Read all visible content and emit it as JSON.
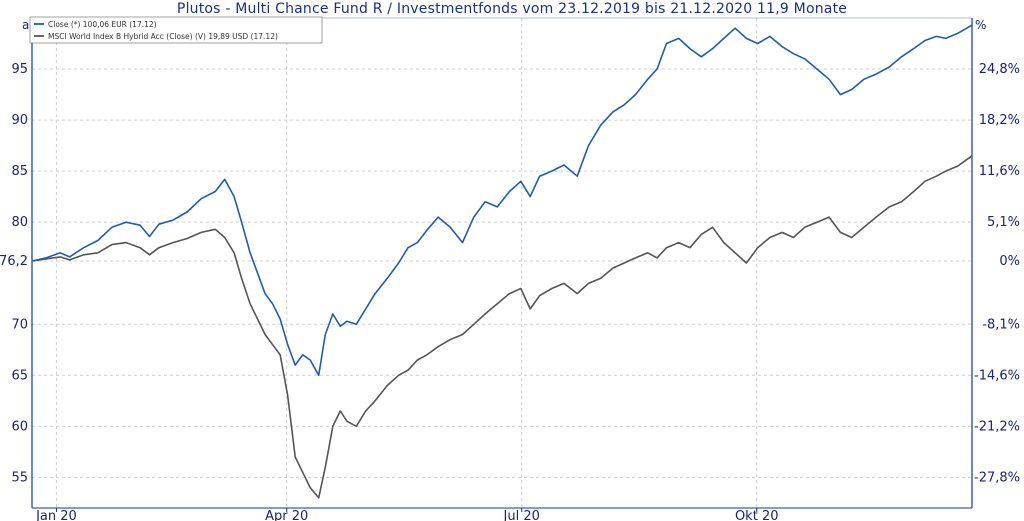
{
  "chart_data": {
    "type": "line",
    "title": "Plutos - Multi Chance Fund R / Investmentfonds vom 23.12.2019 bis 21.12.2020 11,9 Monate",
    "left_corner_label": "a",
    "right_corner_label": "%",
    "x_tick_labels": [
      "Jan 20",
      "Apr 20",
      "Jul 20",
      "Okt 20"
    ],
    "x_tick_positions": [
      0.026,
      0.271,
      0.521,
      0.771
    ],
    "ylim": [
      52,
      100
    ],
    "y_ticks": [
      {
        "value": 95,
        "left": "95",
        "right": "24,8%"
      },
      {
        "value": 90,
        "left": "90",
        "right": "18,2%"
      },
      {
        "value": 85,
        "left": "85",
        "right": "11,6%"
      },
      {
        "value": 80,
        "left": "80",
        "right": "5,1%"
      },
      {
        "value": 76.2,
        "left": "76,2",
        "right": "0%"
      },
      {
        "value": 70,
        "left": "70",
        "right": "-8,1%"
      },
      {
        "value": 65,
        "left": "65",
        "right": "-14,6%"
      },
      {
        "value": 60,
        "left": "60",
        "right": "-21,2%"
      },
      {
        "value": 55,
        "left": "55",
        "right": "-27,8%"
      }
    ],
    "grid": true,
    "legend_position": "top-left",
    "series": [
      {
        "name": "Close (*) 100,06 EUR (17.12)",
        "color": "#1f5bb4",
        "points": [
          [
            0.0,
            76.2
          ],
          [
            0.015,
            76.5
          ],
          [
            0.03,
            77.0
          ],
          [
            0.04,
            76.6
          ],
          [
            0.055,
            77.5
          ],
          [
            0.07,
            78.2
          ],
          [
            0.085,
            79.5
          ],
          [
            0.1,
            80.0
          ],
          [
            0.115,
            79.7
          ],
          [
            0.125,
            78.6
          ],
          [
            0.135,
            79.8
          ],
          [
            0.15,
            80.2
          ],
          [
            0.165,
            81.0
          ],
          [
            0.18,
            82.3
          ],
          [
            0.195,
            83.0
          ],
          [
            0.205,
            84.2
          ],
          [
            0.215,
            82.5
          ],
          [
            0.223,
            80.0
          ],
          [
            0.232,
            77.0
          ],
          [
            0.24,
            75.0
          ],
          [
            0.248,
            73.0
          ],
          [
            0.256,
            72.0
          ],
          [
            0.264,
            70.5
          ],
          [
            0.272,
            68.0
          ],
          [
            0.28,
            66.0
          ],
          [
            0.288,
            67.0
          ],
          [
            0.296,
            66.5
          ],
          [
            0.305,
            65.0
          ],
          [
            0.312,
            69.0
          ],
          [
            0.32,
            71.0
          ],
          [
            0.328,
            69.8
          ],
          [
            0.335,
            70.3
          ],
          [
            0.345,
            70.0
          ],
          [
            0.355,
            71.5
          ],
          [
            0.365,
            73.0
          ],
          [
            0.378,
            74.5
          ],
          [
            0.39,
            76.0
          ],
          [
            0.4,
            77.5
          ],
          [
            0.41,
            78.0
          ],
          [
            0.42,
            79.2
          ],
          [
            0.432,
            80.5
          ],
          [
            0.445,
            79.5
          ],
          [
            0.458,
            78.0
          ],
          [
            0.47,
            80.5
          ],
          [
            0.482,
            82.0
          ],
          [
            0.495,
            81.5
          ],
          [
            0.508,
            83.0
          ],
          [
            0.52,
            84.0
          ],
          [
            0.53,
            82.5
          ],
          [
            0.54,
            84.5
          ],
          [
            0.553,
            85.0
          ],
          [
            0.566,
            85.6
          ],
          [
            0.58,
            84.5
          ],
          [
            0.592,
            87.5
          ],
          [
            0.605,
            89.5
          ],
          [
            0.618,
            90.8
          ],
          [
            0.63,
            91.5
          ],
          [
            0.642,
            92.5
          ],
          [
            0.655,
            94.0
          ],
          [
            0.665,
            95.0
          ],
          [
            0.675,
            97.5
          ],
          [
            0.688,
            98.0
          ],
          [
            0.7,
            97.0
          ],
          [
            0.712,
            96.2
          ],
          [
            0.724,
            97.0
          ],
          [
            0.736,
            98.0
          ],
          [
            0.748,
            99.0
          ],
          [
            0.76,
            98.0
          ],
          [
            0.772,
            97.5
          ],
          [
            0.785,
            98.2
          ],
          [
            0.798,
            97.2
          ],
          [
            0.81,
            96.5
          ],
          [
            0.822,
            96.0
          ],
          [
            0.835,
            95.0
          ],
          [
            0.848,
            94.0
          ],
          [
            0.86,
            92.5
          ],
          [
            0.872,
            93.0
          ],
          [
            0.885,
            94.0
          ],
          [
            0.898,
            94.5
          ],
          [
            0.912,
            95.2
          ],
          [
            0.925,
            96.2
          ],
          [
            0.938,
            97.0
          ],
          [
            0.95,
            97.8
          ],
          [
            0.962,
            98.2
          ],
          [
            0.972,
            98.0
          ],
          [
            0.985,
            98.5
          ],
          [
            1.0,
            99.3
          ]
        ]
      },
      {
        "name": "MSCI World Index B Hybrid Acc (Close) (V) 19,89 USD (17.12)",
        "color": "#555555",
        "points": [
          [
            0.0,
            76.2
          ],
          [
            0.015,
            76.4
          ],
          [
            0.03,
            76.6
          ],
          [
            0.04,
            76.3
          ],
          [
            0.055,
            76.8
          ],
          [
            0.07,
            77.0
          ],
          [
            0.085,
            77.8
          ],
          [
            0.1,
            78.0
          ],
          [
            0.115,
            77.5
          ],
          [
            0.125,
            76.8
          ],
          [
            0.135,
            77.5
          ],
          [
            0.15,
            78.0
          ],
          [
            0.165,
            78.4
          ],
          [
            0.18,
            79.0
          ],
          [
            0.195,
            79.3
          ],
          [
            0.205,
            78.5
          ],
          [
            0.215,
            77.0
          ],
          [
            0.223,
            74.5
          ],
          [
            0.232,
            72.0
          ],
          [
            0.24,
            70.5
          ],
          [
            0.248,
            69.0
          ],
          [
            0.256,
            68.0
          ],
          [
            0.264,
            67.0
          ],
          [
            0.272,
            63.0
          ],
          [
            0.28,
            57.0
          ],
          [
            0.288,
            55.5
          ],
          [
            0.296,
            54.0
          ],
          [
            0.305,
            53.0
          ],
          [
            0.312,
            56.0
          ],
          [
            0.32,
            60.0
          ],
          [
            0.328,
            61.5
          ],
          [
            0.335,
            60.5
          ],
          [
            0.345,
            60.0
          ],
          [
            0.355,
            61.5
          ],
          [
            0.365,
            62.5
          ],
          [
            0.378,
            64.0
          ],
          [
            0.39,
            65.0
          ],
          [
            0.4,
            65.5
          ],
          [
            0.41,
            66.5
          ],
          [
            0.42,
            67.0
          ],
          [
            0.432,
            67.8
          ],
          [
            0.445,
            68.5
          ],
          [
            0.458,
            69.0
          ],
          [
            0.47,
            70.0
          ],
          [
            0.482,
            71.0
          ],
          [
            0.495,
            72.0
          ],
          [
            0.508,
            73.0
          ],
          [
            0.52,
            73.5
          ],
          [
            0.53,
            71.5
          ],
          [
            0.54,
            72.8
          ],
          [
            0.553,
            73.5
          ],
          [
            0.566,
            74.0
          ],
          [
            0.58,
            73.0
          ],
          [
            0.592,
            74.0
          ],
          [
            0.605,
            74.5
          ],
          [
            0.618,
            75.5
          ],
          [
            0.63,
            76.0
          ],
          [
            0.642,
            76.5
          ],
          [
            0.655,
            77.0
          ],
          [
            0.665,
            76.5
          ],
          [
            0.675,
            77.5
          ],
          [
            0.688,
            78.0
          ],
          [
            0.7,
            77.5
          ],
          [
            0.712,
            78.8
          ],
          [
            0.724,
            79.5
          ],
          [
            0.736,
            78.0
          ],
          [
            0.748,
            77.0
          ],
          [
            0.76,
            76.0
          ],
          [
            0.772,
            77.5
          ],
          [
            0.785,
            78.5
          ],
          [
            0.798,
            79.0
          ],
          [
            0.81,
            78.5
          ],
          [
            0.822,
            79.5
          ],
          [
            0.835,
            80.0
          ],
          [
            0.848,
            80.5
          ],
          [
            0.86,
            79.0
          ],
          [
            0.872,
            78.5
          ],
          [
            0.885,
            79.5
          ],
          [
            0.898,
            80.5
          ],
          [
            0.912,
            81.5
          ],
          [
            0.925,
            82.0
          ],
          [
            0.938,
            83.0
          ],
          [
            0.95,
            84.0
          ],
          [
            0.962,
            84.5
          ],
          [
            0.972,
            85.0
          ],
          [
            0.985,
            85.5
          ],
          [
            1.0,
            86.5
          ]
        ]
      }
    ]
  }
}
